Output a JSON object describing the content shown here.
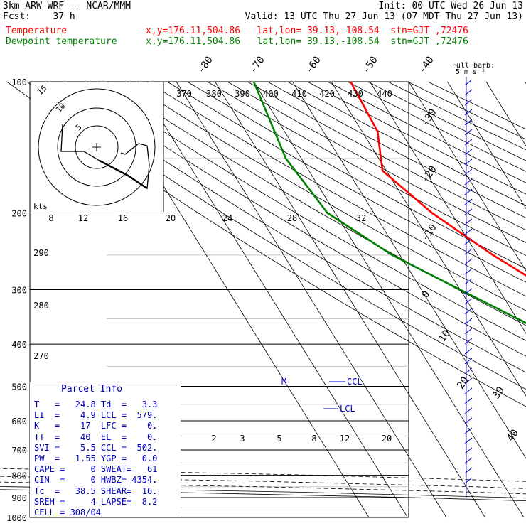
{
  "header": {
    "line1_left": "3km ARW-WRF -- NCAR/MMM",
    "line1_right": "Init: 00 UTC Wed 26 Jun 13",
    "line2_left": "Fcst:    37 h",
    "line2_right": "Valid: 13 UTC Thu 27 Jun 13 (07 MDT Thu 27 Jun 13)",
    "temp_label": "Temperature",
    "temp_info": "x,y=176.11,504.86   lat,lon= 39.13,-108.54  stn=GJT ,72476",
    "dew_label": "Dewpoint temperature",
    "dew_info": "x,y=176.11,504.86   lat,lon= 39.13,-108.54  stn=GJT ,72476"
  },
  "colors": {
    "temperature": "#ff0000",
    "dewpoint": "#008000",
    "info": "#0000c0"
  },
  "chart_data": {
    "type": "line",
    "pressure_ticks": [
      "100",
      "200",
      "300",
      "400",
      "500",
      "600",
      "700",
      "800",
      "900",
      "1000"
    ],
    "isotherm_top_labels": [
      "-80",
      "-70",
      "-60",
      "-50",
      "-40"
    ],
    "isotherm_side_labels": [
      "-30",
      "-20",
      "-10",
      "0",
      "10",
      "20",
      "30",
      "40"
    ],
    "theta_labels_top": [
      "370",
      "380",
      "390",
      "400",
      "410",
      "420",
      "430",
      "440"
    ],
    "theta_labels_left": [
      "290",
      "280",
      "270"
    ],
    "mixing_labels": [
      "2",
      "3",
      "5",
      "8",
      "12",
      "20"
    ],
    "hodo_labels": {
      "units": "kts",
      "speeds": [
        "8",
        "12",
        "16",
        "20",
        "24",
        "28",
        "32"
      ],
      "rings": [
        "5",
        "10",
        "15"
      ]
    },
    "wind_label": "Full barb:",
    "wind_label2": "5 m s⁻¹",
    "series": [
      {
        "name": "Temperature",
        "data": [
          [
            100,
            -55
          ],
          [
            130,
            -56
          ],
          [
            160,
            -61
          ],
          [
            200,
            -55
          ],
          [
            250,
            -46
          ],
          [
            300,
            -37
          ],
          [
            400,
            -22
          ],
          [
            500,
            -11
          ],
          [
            600,
            -1
          ],
          [
            700,
            10
          ],
          [
            800,
            19
          ],
          [
            860,
            27
          ]
        ]
      },
      {
        "name": "Dewpoint temperature",
        "data": [
          [
            100,
            -80
          ],
          [
            150,
            -84
          ],
          [
            200,
            -82
          ],
          [
            250,
            -72
          ],
          [
            300,
            -60
          ],
          [
            400,
            -41
          ],
          [
            500,
            -31
          ],
          [
            600,
            -16
          ],
          [
            700,
            -2
          ],
          [
            800,
            -4
          ],
          [
            860,
            -3
          ]
        ]
      }
    ],
    "levels": {
      "lcl": "LCL",
      "ccl": "CCL",
      "m": "M"
    }
  },
  "parcel": {
    "title": "Parcel Info",
    "rows": [
      "T   =   24.8 Td  =   3.3",
      "LI  =    4.9 LCL =  579.",
      "K   =    17  LFC =    0.",
      "TT  =    40  EL  =    0.",
      "SVI =    5.5 CCL =  502.",
      "PW  =   1.55 YGP =   0.0",
      "CAPE =     0 SWEAT=   61",
      "CIN  =     0 HWBZ= 4354.",
      "Tc  =   38.5 SHEAR=  16.",
      "SREH =     4 LAPSE=  8.2",
      "CELL = 308/04"
    ]
  }
}
